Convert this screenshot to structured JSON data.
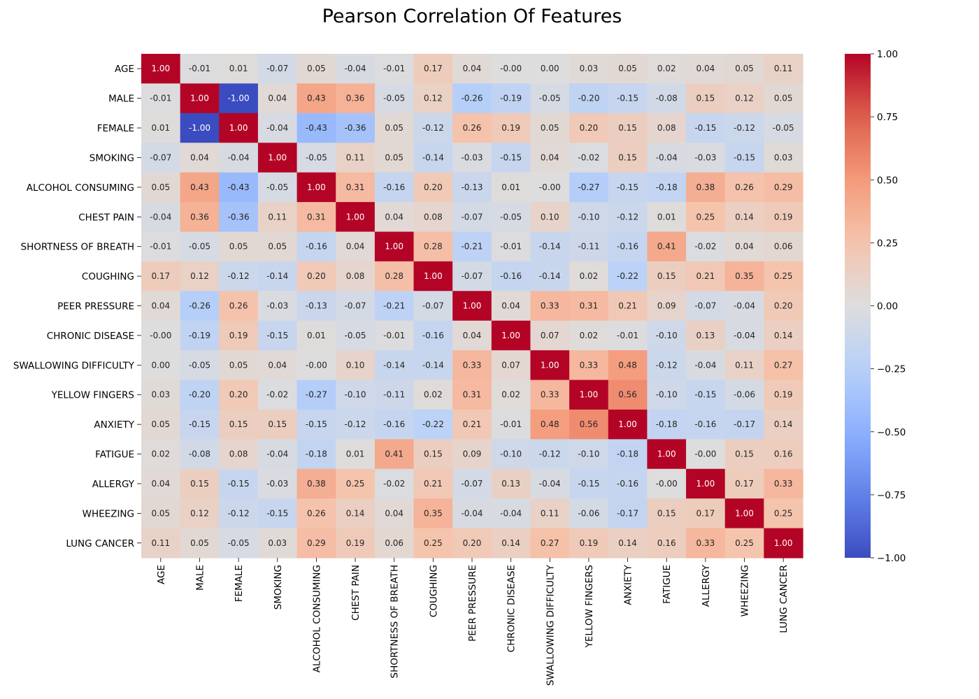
{
  "chart_data": {
    "type": "heatmap",
    "title": "Pearson Correlation Of Features",
    "colormap": "coolwarm",
    "vmin": -1.0,
    "vmax": 1.0,
    "annotation_format": "0.00",
    "labels": [
      "AGE",
      "MALE",
      "FEMALE",
      "SMOKING",
      "ALCOHOL CONSUMING",
      "CHEST PAIN",
      "SHORTNESS OF BREATH",
      "COUGHING",
      "PEER PRESSURE",
      "CHRONIC DISEASE",
      "SWALLOWING DIFFICULTY",
      "YELLOW FINGERS",
      "ANXIETY",
      "FATIGUE",
      "ALLERGY",
      "WHEEZING",
      "LUNG CANCER"
    ],
    "matrix": [
      [
        "1.00",
        "-0.01",
        "0.01",
        "-0.07",
        "0.05",
        "-0.04",
        "-0.01",
        "0.17",
        "0.04",
        "-0.00",
        "0.00",
        "0.03",
        "0.05",
        "0.02",
        "0.04",
        "0.05",
        "0.11"
      ],
      [
        "-0.01",
        "1.00",
        "-1.00",
        "0.04",
        "0.43",
        "0.36",
        "-0.05",
        "0.12",
        "-0.26",
        "-0.19",
        "-0.05",
        "-0.20",
        "-0.15",
        "-0.08",
        "0.15",
        "0.12",
        "0.05"
      ],
      [
        "0.01",
        "-1.00",
        "1.00",
        "-0.04",
        "-0.43",
        "-0.36",
        "0.05",
        "-0.12",
        "0.26",
        "0.19",
        "0.05",
        "0.20",
        "0.15",
        "0.08",
        "-0.15",
        "-0.12",
        "-0.05"
      ],
      [
        "-0.07",
        "0.04",
        "-0.04",
        "1.00",
        "-0.05",
        "0.11",
        "0.05",
        "-0.14",
        "-0.03",
        "-0.15",
        "0.04",
        "-0.02",
        "0.15",
        "-0.04",
        "-0.03",
        "-0.15",
        "0.03"
      ],
      [
        "0.05",
        "0.43",
        "-0.43",
        "-0.05",
        "1.00",
        "0.31",
        "-0.16",
        "0.20",
        "-0.13",
        "0.01",
        "-0.00",
        "-0.27",
        "-0.15",
        "-0.18",
        "0.38",
        "0.26",
        "0.29"
      ],
      [
        "-0.04",
        "0.36",
        "-0.36",
        "0.11",
        "0.31",
        "1.00",
        "0.04",
        "0.08",
        "-0.07",
        "-0.05",
        "0.10",
        "-0.10",
        "-0.12",
        "0.01",
        "0.25",
        "0.14",
        "0.19"
      ],
      [
        "-0.01",
        "-0.05",
        "0.05",
        "0.05",
        "-0.16",
        "0.04",
        "1.00",
        "0.28",
        "-0.21",
        "-0.01",
        "-0.14",
        "-0.11",
        "-0.16",
        "0.41",
        "-0.02",
        "0.04",
        "0.06"
      ],
      [
        "0.17",
        "0.12",
        "-0.12",
        "-0.14",
        "0.20",
        "0.08",
        "0.28",
        "1.00",
        "-0.07",
        "-0.16",
        "-0.14",
        "0.02",
        "-0.22",
        "0.15",
        "0.21",
        "0.35",
        "0.25"
      ],
      [
        "0.04",
        "-0.26",
        "0.26",
        "-0.03",
        "-0.13",
        "-0.07",
        "-0.21",
        "-0.07",
        "1.00",
        "0.04",
        "0.33",
        "0.31",
        "0.21",
        "0.09",
        "-0.07",
        "-0.04",
        "0.20"
      ],
      [
        "-0.00",
        "-0.19",
        "0.19",
        "-0.15",
        "0.01",
        "-0.05",
        "-0.01",
        "-0.16",
        "0.04",
        "1.00",
        "0.07",
        "0.02",
        "-0.01",
        "-0.10",
        "0.13",
        "-0.04",
        "0.14"
      ],
      [
        "0.00",
        "-0.05",
        "0.05",
        "0.04",
        "-0.00",
        "0.10",
        "-0.14",
        "-0.14",
        "0.33",
        "0.07",
        "1.00",
        "0.33",
        "0.48",
        "-0.12",
        "-0.04",
        "0.11",
        "0.27"
      ],
      [
        "0.03",
        "-0.20",
        "0.20",
        "-0.02",
        "-0.27",
        "-0.10",
        "-0.11",
        "0.02",
        "0.31",
        "0.02",
        "0.33",
        "1.00",
        "0.56",
        "-0.10",
        "-0.15",
        "-0.06",
        "0.19"
      ],
      [
        "0.05",
        "-0.15",
        "0.15",
        "0.15",
        "-0.15",
        "-0.12",
        "-0.16",
        "-0.22",
        "0.21",
        "-0.01",
        "0.48",
        "0.56",
        "1.00",
        "-0.18",
        "-0.16",
        "-0.17",
        "0.14"
      ],
      [
        "0.02",
        "-0.08",
        "0.08",
        "-0.04",
        "-0.18",
        "0.01",
        "0.41",
        "0.15",
        "0.09",
        "-0.10",
        "-0.12",
        "-0.10",
        "-0.18",
        "1.00",
        "-0.00",
        "0.15",
        "0.16"
      ],
      [
        "0.04",
        "0.15",
        "-0.15",
        "-0.03",
        "0.38",
        "0.25",
        "-0.02",
        "0.21",
        "-0.07",
        "0.13",
        "-0.04",
        "-0.15",
        "-0.16",
        "-0.00",
        "1.00",
        "0.17",
        "0.33"
      ],
      [
        "0.05",
        "0.12",
        "-0.12",
        "-0.15",
        "0.26",
        "0.14",
        "0.04",
        "0.35",
        "-0.04",
        "-0.04",
        "0.11",
        "-0.06",
        "-0.17",
        "0.15",
        "0.17",
        "1.00",
        "0.25"
      ],
      [
        "0.11",
        "0.05",
        "-0.05",
        "0.03",
        "0.29",
        "0.19",
        "0.06",
        "0.25",
        "0.20",
        "0.14",
        "0.27",
        "0.19",
        "0.14",
        "0.16",
        "0.33",
        "0.25",
        "1.00"
      ]
    ],
    "colorbar": {
      "ticks": [
        1.0,
        0.75,
        0.5,
        0.25,
        0.0,
        -0.25,
        -0.5,
        -0.75,
        -1.0
      ],
      "tick_labels": [
        "1.00",
        "0.75",
        "0.50",
        "0.25",
        "0.00",
        "−0.25",
        "−0.50",
        "−0.75",
        "−1.00"
      ]
    }
  }
}
